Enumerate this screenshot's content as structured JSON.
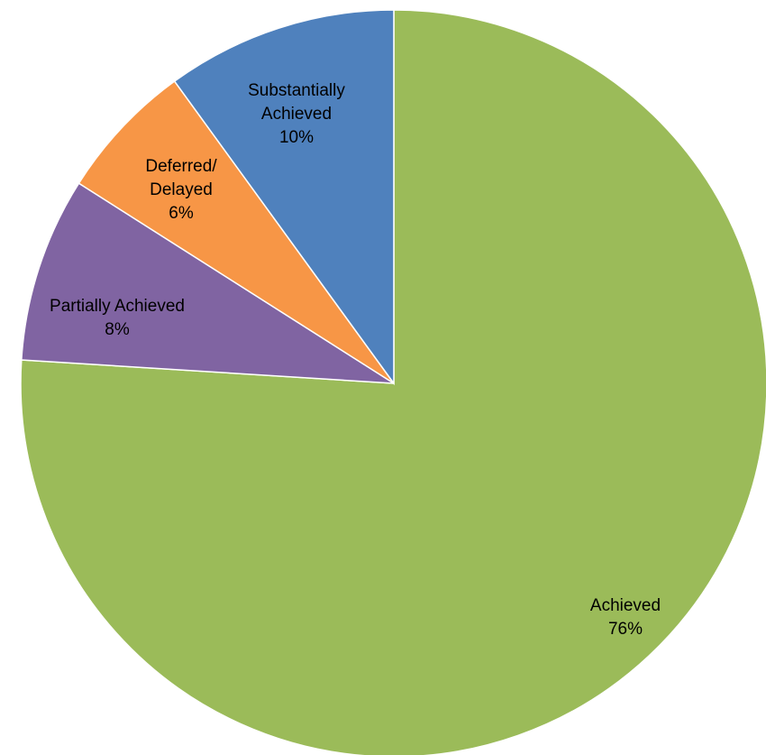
{
  "chart_data": {
    "type": "pie",
    "start_angle_deg": 0,
    "direction": "clockwise",
    "legend": "none",
    "slices": [
      {
        "name": "Achieved",
        "value": 76,
        "label_lines": [
          "Achieved",
          "76%"
        ],
        "color": "#9BBB59"
      },
      {
        "name": "Partially Achieved",
        "value": 8,
        "label_lines": [
          "Partially Achieved",
          "8%"
        ],
        "color": "#8064A2"
      },
      {
        "name": "Deferred/ Delayed",
        "value": 6,
        "label_lines": [
          "Deferred/",
          "Delayed",
          "6%"
        ],
        "color": "#F79646"
      },
      {
        "name": "Substantially Achieved",
        "value": 10,
        "label_lines": [
          "Substantially",
          "Achieved",
          "10%"
        ],
        "color": "#4F81BD"
      }
    ]
  }
}
